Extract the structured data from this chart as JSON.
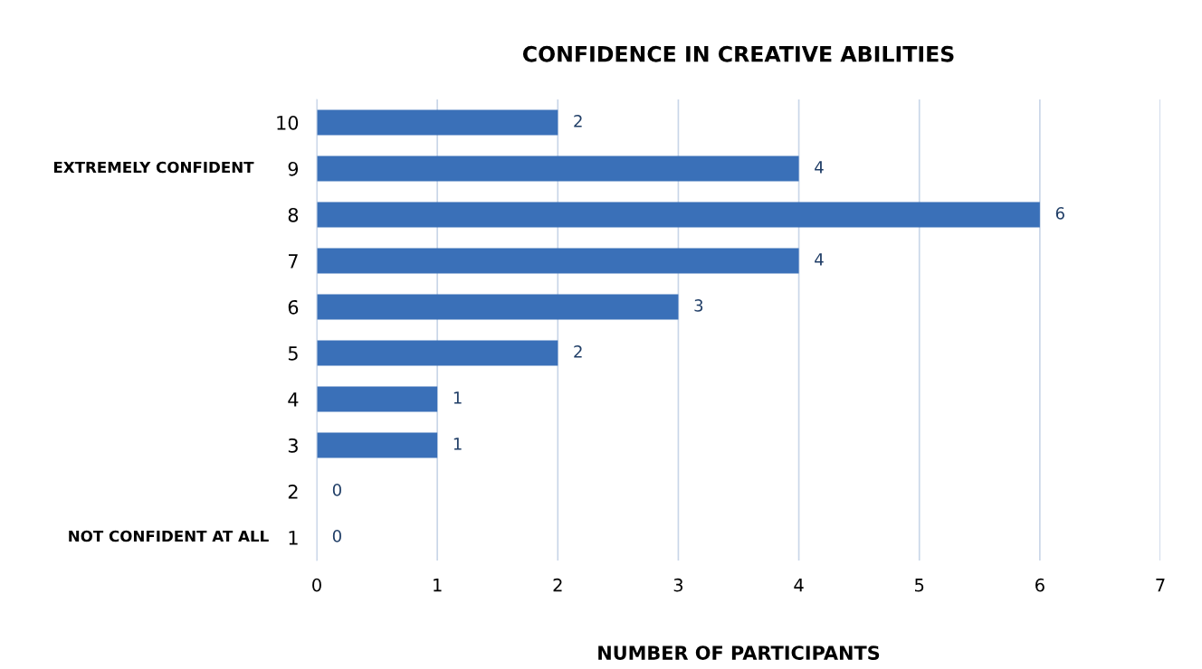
{
  "chart_data": {
    "type": "bar",
    "orientation": "horizontal",
    "title": "CONFIDENCE IN CREATIVE ABILITIES",
    "xlabel": "NUMBER OF PARTICIPANTS",
    "categories": [
      "10",
      "9",
      "8",
      "7",
      "6",
      "5",
      "4",
      "3",
      "2",
      "1"
    ],
    "values": [
      2,
      4,
      6,
      4,
      3,
      2,
      1,
      1,
      0,
      0
    ],
    "color": "#3a70b8",
    "xlim": [
      0,
      7
    ],
    "xticks": [
      0,
      1,
      2,
      3,
      4,
      5,
      6,
      7
    ],
    "grid": "x",
    "data_labels": true,
    "annotations": [
      "EXTREMELY CONFIDENT",
      "NOT CONFIDENT AT ALL"
    ]
  }
}
